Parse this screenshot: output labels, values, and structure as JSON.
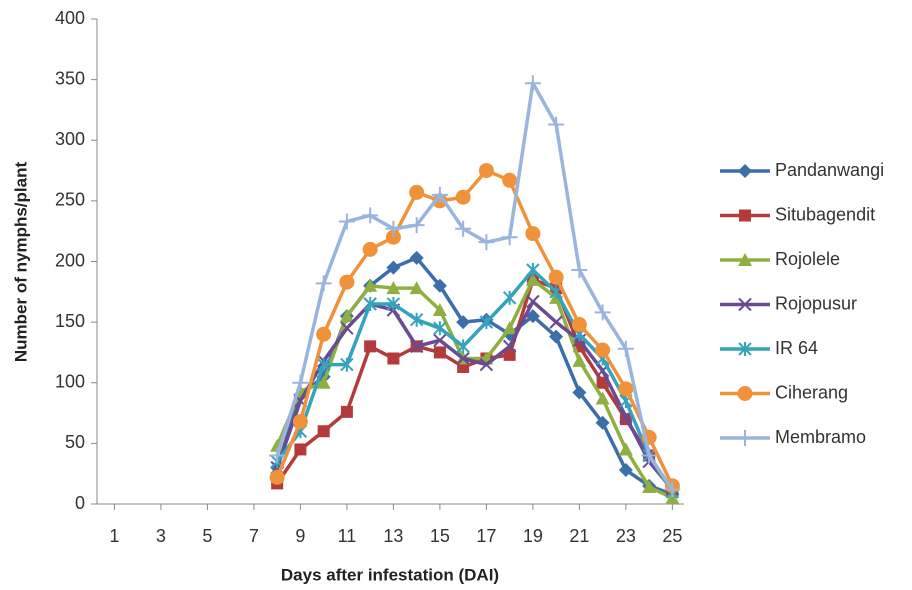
{
  "chart_data": {
    "type": "line",
    "y_label": "Number of nymphs/plant",
    "x_label": "Days after infestation (DAI)",
    "x": [
      8,
      9,
      10,
      11,
      12,
      13,
      14,
      15,
      16,
      17,
      18,
      19,
      20,
      21,
      22,
      23,
      24,
      25
    ],
    "xlim": [
      0.25,
      25.5
    ],
    "xticks": [
      1,
      3,
      5,
      7,
      9,
      11,
      13,
      15,
      17,
      19,
      21,
      23,
      25
    ],
    "ylim": [
      0,
      400
    ],
    "yticks": [
      0,
      50,
      100,
      150,
      200,
      250,
      300,
      350,
      400
    ],
    "legend": "right",
    "series": [
      {
        "name": "Pandanwangi",
        "color": "#3c6eaa",
        "marker": "diamond",
        "values": [
          30,
          90,
          105,
          155,
          180,
          195,
          203,
          180,
          150,
          152,
          140,
          155,
          138,
          92,
          67,
          28,
          15,
          8
        ]
      },
      {
        "name": "Situbagendit",
        "color": "#b33b3b",
        "marker": "square",
        "values": [
          17,
          45,
          60,
          76,
          130,
          120,
          130,
          125,
          113,
          120,
          123,
          185,
          178,
          130,
          100,
          70,
          40,
          10
        ]
      },
      {
        "name": "Rojolele",
        "color": "#8fb040",
        "marker": "triangle",
        "values": [
          48,
          93,
          100,
          155,
          180,
          178,
          178,
          160,
          120,
          120,
          145,
          185,
          170,
          118,
          87,
          45,
          14,
          5
        ]
      },
      {
        "name": "Rojopusur",
        "color": "#6a4a93",
        "marker": "x",
        "values": [
          30,
          85,
          118,
          145,
          165,
          160,
          130,
          135,
          120,
          115,
          130,
          167,
          150,
          135,
          110,
          72,
          35,
          12
        ]
      },
      {
        "name": "IR 64",
        "color": "#34a3bc",
        "marker": "asterisk",
        "values": [
          35,
          60,
          115,
          115,
          165,
          165,
          152,
          145,
          130,
          150,
          170,
          193,
          175,
          140,
          120,
          85,
          40,
          10
        ]
      },
      {
        "name": "Ciherang",
        "color": "#f0923a",
        "marker": "circle",
        "values": [
          22,
          68,
          140,
          183,
          210,
          220,
          257,
          250,
          253,
          275,
          267,
          223,
          187,
          148,
          127,
          95,
          55,
          15
        ]
      },
      {
        "name": "Membramo",
        "color": "#9ab5dd",
        "marker": "plus",
        "values": [
          40,
          100,
          182,
          233,
          238,
          227,
          230,
          255,
          227,
          216,
          220,
          347,
          313,
          193,
          158,
          128,
          40,
          12
        ]
      }
    ]
  }
}
